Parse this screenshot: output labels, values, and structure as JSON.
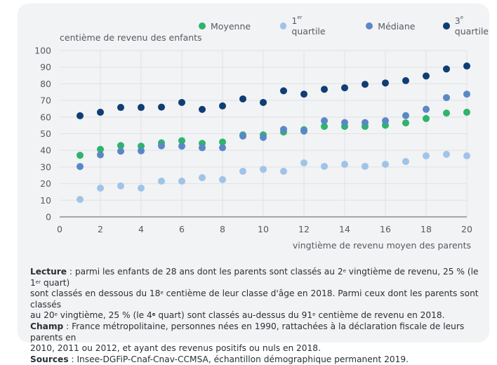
{
  "colors": {
    "moyenne": "#2eb46c",
    "q1": "#a0c3e8",
    "mediane": "#5b87c8",
    "q3": "#0f3d74",
    "grid": "#dfe1e4",
    "axis": "#8a8d91",
    "background": "#f2f3f5"
  },
  "legend": [
    {
      "key": "moyenne",
      "label": "Moyenne",
      "sup": ""
    },
    {
      "key": "q1",
      "label_pre": "1",
      "sup": "er",
      "label_post": " quartile"
    },
    {
      "key": "mediane",
      "label": "Médiane",
      "sup": ""
    },
    {
      "key": "q3",
      "label_pre": "3",
      "sup": "e",
      "label_post": " quartile"
    }
  ],
  "notes": {
    "lecture_label": "Lecture",
    "lecture_line1": " : parmi les enfants de 28 ans dont les parents sont classés au 2",
    "lecture_sup1": "e",
    "lecture_line1b": " vingtième de revenu, 25 % (le 1",
    "lecture_sup2": "er",
    "lecture_line1c": " quart)",
    "lecture_line2": "sont classés en dessous du 18",
    "lecture_sup3": "e",
    "lecture_line2b": " centième de leur classe d'âge en 2018. Parmi ceux dont les parents sont classés",
    "lecture_line3": "au 20",
    "lecture_sup4": "e",
    "lecture_line3b": " vingtième,  25 % (le 4",
    "lecture_sup5": "e",
    "lecture_line3c": " quart) sont classés au-dessus du 91",
    "lecture_sup6": "e",
    "lecture_line3d": " centième de revenu en 2018.",
    "champ_label": "Champ",
    "champ_text1": " : France métropolitaine, personnes nées en 1990, rattachées à la déclaration fiscale de leurs parents en",
    "champ_text2": "2010, 2011 ou 2012, et ayant des revenus positifs ou nuls en 2018.",
    "sources_label": "Sources",
    "sources_text": " : Insee-DGFiP-Cnaf-Cnav-CCMSA, échantillon démographique permanent 2019."
  },
  "chart_data": {
    "type": "scatter",
    "title": "",
    "xlabel": "vingtième de revenu moyen des parents",
    "ylabel": "centième de revenu des enfants",
    "xlim": [
      0,
      20
    ],
    "ylim": [
      0,
      100
    ],
    "xticks": [
      0,
      2,
      4,
      6,
      8,
      10,
      12,
      14,
      16,
      18,
      20
    ],
    "yticks": [
      0,
      10,
      20,
      30,
      40,
      50,
      60,
      70,
      80,
      90,
      100
    ],
    "grid": true,
    "legend_position": "top-right",
    "x": [
      1,
      2,
      3,
      4,
      5,
      6,
      7,
      8,
      9,
      10,
      11,
      12,
      13,
      14,
      15,
      16,
      17,
      18,
      19,
      20
    ],
    "series": [
      {
        "key": "moyenne",
        "name": "Moyenne",
        "values": [
          37,
          40.6,
          42.9,
          42.5,
          44.5,
          45.8,
          44.2,
          45,
          49.3,
          49.3,
          51,
          52.4,
          54.4,
          54.4,
          54.4,
          55.1,
          56.5,
          59.1,
          62.4,
          62.9
        ]
      },
      {
        "key": "q1",
        "name": "1er quartile",
        "values": [
          10.5,
          17.3,
          18.6,
          17.3,
          21.5,
          21.5,
          23.6,
          22.4,
          27.4,
          28.6,
          27.4,
          32.5,
          30.4,
          31.6,
          30.4,
          31.6,
          33.3,
          36.7,
          37.6,
          36.7
        ]
      },
      {
        "key": "mediane",
        "name": "Médiane",
        "values": [
          30.3,
          37.3,
          39.5,
          39.7,
          42.7,
          42.5,
          41.6,
          41.6,
          48.6,
          47.8,
          52.6,
          51.6,
          57.8,
          56.7,
          56.7,
          57.8,
          60.9,
          64.7,
          71.7,
          73.8
        ]
      },
      {
        "key": "q3",
        "name": "3e quartile",
        "values": [
          60.8,
          62.9,
          65.8,
          65.8,
          66,
          68.8,
          64.6,
          66.7,
          70.9,
          68.8,
          75.8,
          73.8,
          76.7,
          77.6,
          79.7,
          80.5,
          81.9,
          84.7,
          88.9,
          90.7
        ]
      }
    ]
  }
}
